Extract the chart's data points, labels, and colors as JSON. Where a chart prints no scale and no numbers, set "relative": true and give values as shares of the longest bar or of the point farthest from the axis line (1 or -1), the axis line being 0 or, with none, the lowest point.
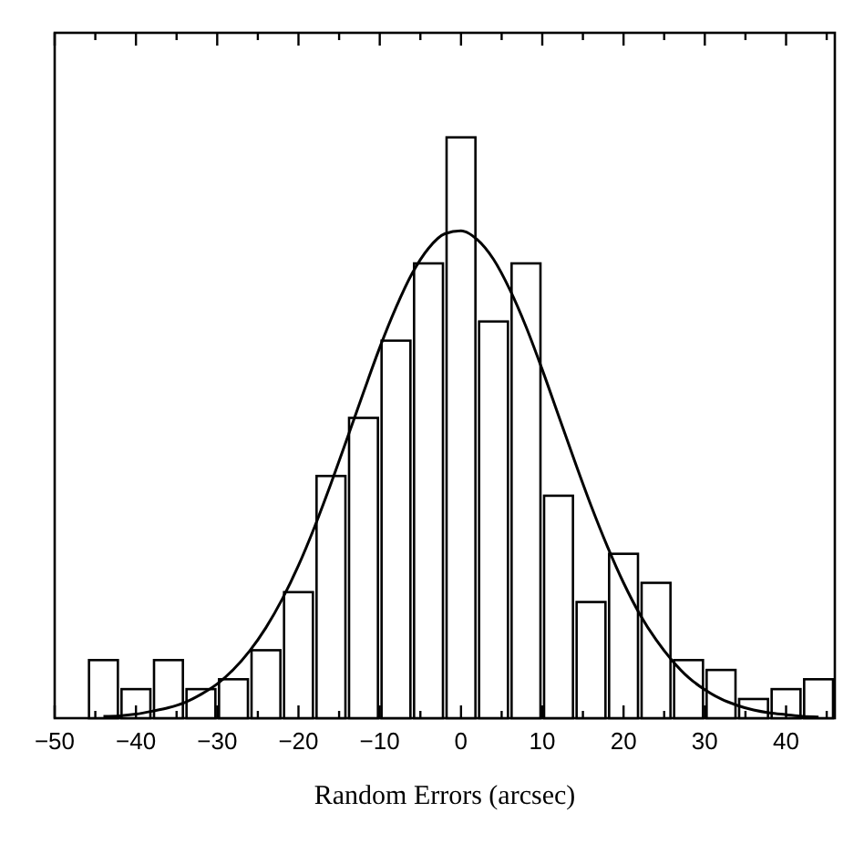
{
  "chart_data": {
    "type": "histogram",
    "relative": true,
    "xlabel": "Random Errors (arcsec)",
    "bins": [
      -46,
      -42,
      -38,
      -34,
      -30,
      -26,
      -22,
      -18,
      -14,
      -10,
      -6,
      -2,
      2,
      6,
      10,
      14,
      18,
      22,
      26,
      30,
      34,
      38,
      42,
      46
    ],
    "values": [
      0.1,
      0.05,
      0.1,
      0.05,
      0.067,
      0.117,
      0.217,
      0.417,
      0.517,
      0.65,
      0.783,
      1,
      0.683,
      0.783,
      0.383,
      0.2,
      0.283,
      0.233,
      0.1,
      0.083,
      0.033,
      0.05,
      0.067
    ],
    "color": "#ffffff",
    "series": [
      {
        "type": "line",
        "color": "#000000",
        "x": [
          -44,
          -42,
          -40,
          -38,
          -36,
          -34,
          -32,
          -30,
          -28,
          -26,
          -24,
          -22,
          -20,
          -18,
          -16,
          -14,
          -12,
          -10,
          -8,
          -6,
          -4,
          -2,
          0,
          2,
          4,
          6,
          8,
          10,
          12,
          14,
          16,
          18,
          20,
          22,
          24,
          26,
          28,
          30,
          32,
          34,
          36,
          38,
          40,
          42,
          44
        ],
        "values": [
          0.003,
          0.004,
          0.007,
          0.012,
          0.018,
          0.027,
          0.041,
          0.059,
          0.084,
          0.116,
          0.156,
          0.205,
          0.263,
          0.33,
          0.404,
          0.482,
          0.561,
          0.638,
          0.707,
          0.766,
          0.809,
          0.834,
          0.839,
          0.824,
          0.79,
          0.738,
          0.674,
          0.6,
          0.521,
          0.442,
          0.366,
          0.296,
          0.233,
          0.179,
          0.135,
          0.099,
          0.07,
          0.049,
          0.033,
          0.022,
          0.014,
          0.009,
          0.006,
          0.003,
          0.002
        ]
      }
    ],
    "xlim": [
      -50,
      46
    ],
    "xticks": [
      -50,
      {
        "value": -45,
        "label": null
      },
      -40,
      {
        "value": -35,
        "label": null
      },
      -30,
      {
        "value": -25,
        "label": null
      },
      -20,
      {
        "value": -15,
        "label": null
      },
      -10,
      {
        "value": -5,
        "label": null
      },
      0,
      {
        "value": 5,
        "label": null
      },
      10,
      {
        "value": 15,
        "label": null
      },
      20,
      {
        "value": 25,
        "label": null
      },
      30,
      {
        "value": 35,
        "label": null
      },
      40,
      {
        "value": 45,
        "label": null
      }
    ],
    "grid": false
  }
}
